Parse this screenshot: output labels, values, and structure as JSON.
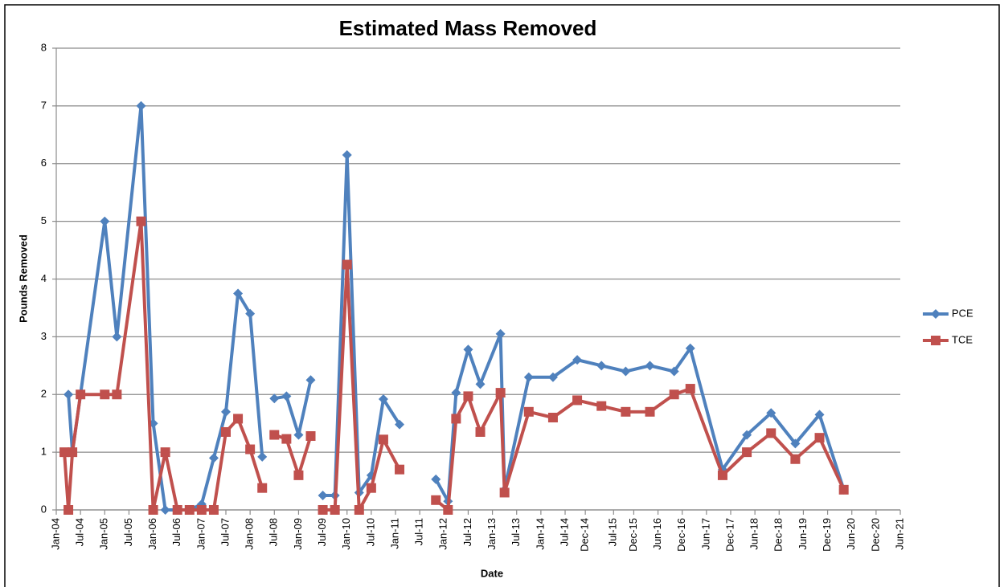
{
  "chart_data": {
    "type": "line",
    "title": "Estimated Mass Removed",
    "x_label": "Date",
    "y_label": "Pounds Removed",
    "xlim": [
      "2004-01",
      "2021-06"
    ],
    "xticks": [
      {
        "value": "2004-01",
        "label": "Jan-04"
      },
      {
        "value": "2004-07",
        "label": "Jul-04"
      },
      {
        "value": "2005-01",
        "label": "Jan-05"
      },
      {
        "value": "2005-07",
        "label": "Jul-05"
      },
      {
        "value": "2006-01",
        "label": "Jan-06"
      },
      {
        "value": "2006-07",
        "label": "Jul-06"
      },
      {
        "value": "2007-01",
        "label": "Jan-07"
      },
      {
        "value": "2007-07",
        "label": "Jul-07"
      },
      {
        "value": "2008-01",
        "label": "Jan-08"
      },
      {
        "value": "2008-07",
        "label": "Jul-08"
      },
      {
        "value": "2009-01",
        "label": "Jan-09"
      },
      {
        "value": "2009-07",
        "label": "Jul-09"
      },
      {
        "value": "2010-01",
        "label": "Jan-10"
      },
      {
        "value": "2010-07",
        "label": "Jul-10"
      },
      {
        "value": "2011-01",
        "label": "Jan-11"
      },
      {
        "value": "2011-07",
        "label": "Jul-11"
      },
      {
        "value": "2012-01",
        "label": "Jan-12"
      },
      {
        "value": "2012-07",
        "label": "Jul-12"
      },
      {
        "value": "2013-01",
        "label": "Jan-13"
      },
      {
        "value": "2013-07",
        "label": "Jul-13"
      },
      {
        "value": "2014-01",
        "label": "Jan-14"
      },
      {
        "value": "2014-07",
        "label": "Jul-14"
      },
      {
        "value": "2014-12",
        "label": "Dec-14"
      },
      {
        "value": "2015-07",
        "label": "Jul-15"
      },
      {
        "value": "2015-12",
        "label": "Dec-15"
      },
      {
        "value": "2016-06",
        "label": "Jun-16"
      },
      {
        "value": "2016-12",
        "label": "Dec-16"
      },
      {
        "value": "2017-06",
        "label": "Jun-17"
      },
      {
        "value": "2017-12",
        "label": "Dec-17"
      },
      {
        "value": "2018-06",
        "label": "Jun-18"
      },
      {
        "value": "2018-12",
        "label": "Dec-18"
      },
      {
        "value": "2019-06",
        "label": "Jun-19"
      },
      {
        "value": "2019-12",
        "label": "Dec-19"
      },
      {
        "value": "2020-06",
        "label": "Jun-20"
      },
      {
        "value": "2020-12",
        "label": "Dec-20"
      },
      {
        "value": "2021-06",
        "label": "Jun-21"
      }
    ],
    "ylim": [
      0,
      8
    ],
    "yticks": [
      0,
      1,
      2,
      3,
      4,
      5,
      6,
      7,
      8
    ],
    "grid": true,
    "legend": "right",
    "series": [
      {
        "name": "PCE",
        "color": "#4f81bd",
        "marker": "diamond",
        "x": [
          "2004-04",
          "2004-05",
          "2005-01",
          "2005-04",
          "2005-10",
          "2006-01",
          "2006-04",
          "2006-07",
          "2006-10",
          "2007-01",
          "2007-04",
          "2007-07",
          "2007-10",
          "2008-01",
          "2008-04",
          "2008-06",
          "2008-07",
          "2008-10",
          "2009-01",
          "2009-04",
          "2009-06",
          "2009-07",
          "2009-10",
          "2010-01",
          "2010-04",
          "2010-07",
          "2010-10",
          "2011-02",
          "2011-06",
          "2011-11",
          "2012-02",
          "2012-04",
          "2012-07",
          "2012-10",
          "2013-03",
          "2013-04",
          "2013-10",
          "2014-04",
          "2014-10",
          "2015-04",
          "2015-10",
          "2016-04",
          "2016-10",
          "2017-02",
          "2017-10",
          "2018-04",
          "2018-10",
          "2019-04",
          "2019-10",
          "2020-04"
        ],
        "values": [
          2.0,
          1.0,
          5.0,
          3.0,
          7.0,
          1.5,
          0,
          0,
          0,
          0.1,
          0.9,
          1.7,
          3.75,
          3.4,
          0.92,
          null,
          1.93,
          1.97,
          1.3,
          2.25,
          null,
          0.25,
          0.25,
          6.15,
          0.3,
          0.6,
          1.92,
          1.48,
          null,
          0.53,
          0.15,
          2.03,
          2.78,
          2.18,
          3.05,
          0.35,
          2.3,
          2.3,
          2.6,
          2.5,
          2.4,
          2.5,
          2.4,
          2.8,
          0.7,
          1.3,
          1.68,
          1.15,
          1.65,
          0.35
        ]
      },
      {
        "name": "TCE",
        "color": "#c0504d",
        "marker": "square",
        "x": [
          "2004-03",
          "2004-04",
          "2004-05",
          "2004-07",
          "2005-01",
          "2005-04",
          "2005-10",
          "2006-01",
          "2006-04",
          "2006-07",
          "2006-10",
          "2007-01",
          "2007-04",
          "2007-07",
          "2007-10",
          "2008-01",
          "2008-04",
          "2008-06",
          "2008-07",
          "2008-10",
          "2009-01",
          "2009-04",
          "2009-06",
          "2009-07",
          "2009-10",
          "2010-01",
          "2010-04",
          "2010-07",
          "2010-10",
          "2011-02",
          "2011-06",
          "2011-11",
          "2012-02",
          "2012-04",
          "2012-07",
          "2012-10",
          "2013-03",
          "2013-04",
          "2013-10",
          "2014-04",
          "2014-10",
          "2015-04",
          "2015-10",
          "2016-04",
          "2016-10",
          "2017-02",
          "2017-10",
          "2018-04",
          "2018-10",
          "2019-04",
          "2019-10",
          "2020-04"
        ],
        "values": [
          1.0,
          0,
          1.0,
          2.0,
          2.0,
          2.0,
          5.0,
          0,
          1.0,
          0,
          0,
          0,
          0,
          1.35,
          1.58,
          1.05,
          0.38,
          null,
          1.3,
          1.23,
          0.6,
          1.28,
          null,
          0,
          0,
          4.25,
          0,
          0.38,
          1.22,
          0.7,
          null,
          0.17,
          0,
          1.58,
          1.97,
          1.35,
          2.03,
          0.3,
          1.7,
          1.6,
          1.9,
          1.8,
          1.7,
          1.7,
          2.0,
          2.1,
          0.6,
          1.0,
          1.33,
          0.88,
          1.25,
          0.35
        ]
      }
    ]
  }
}
